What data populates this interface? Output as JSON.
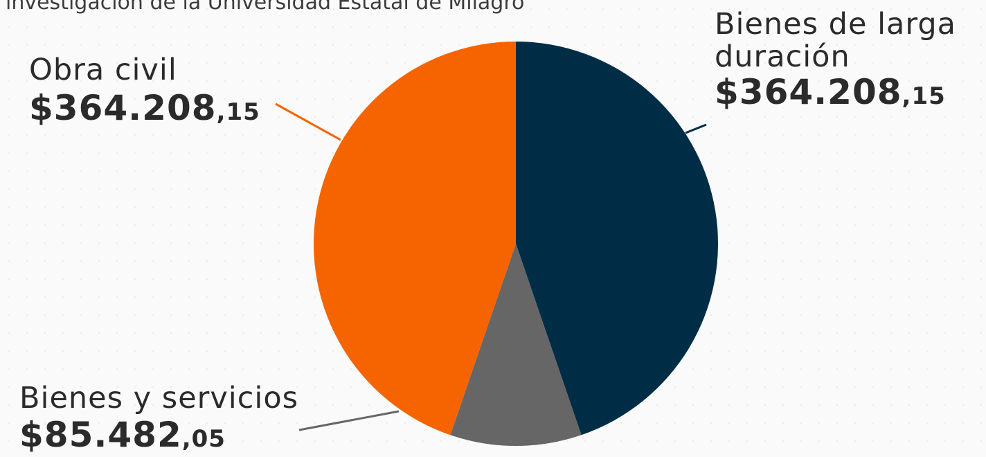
{
  "top_text": "investigación de la Universidad Estatal de Milagro",
  "chart_data": {
    "type": "pie",
    "slices": [
      {
        "name": "Bienes de larga duración",
        "value": 364208.15,
        "amount_main": "$364.208",
        "amount_cents": ",15",
        "color": "#002d46"
      },
      {
        "name": "Bienes y servicios",
        "value": 85482.05,
        "amount_main": "$85.482",
        "amount_cents": ",05",
        "color": "#666666"
      },
      {
        "name": "Obra civil",
        "value": 364208.15,
        "amount_main": "$364.208",
        "amount_cents": ",15",
        "color": "#f56400"
      }
    ],
    "start_angle_deg": 0,
    "direction": "clockwise",
    "legend": "none"
  },
  "labels": {
    "bienes_larga": {
      "name_line1": "Bienes de larga",
      "name_line2": "duración"
    },
    "obra_civil": {
      "name": "Obra civil"
    },
    "bienes_servicios": {
      "name": "Bienes y servicios"
    }
  }
}
